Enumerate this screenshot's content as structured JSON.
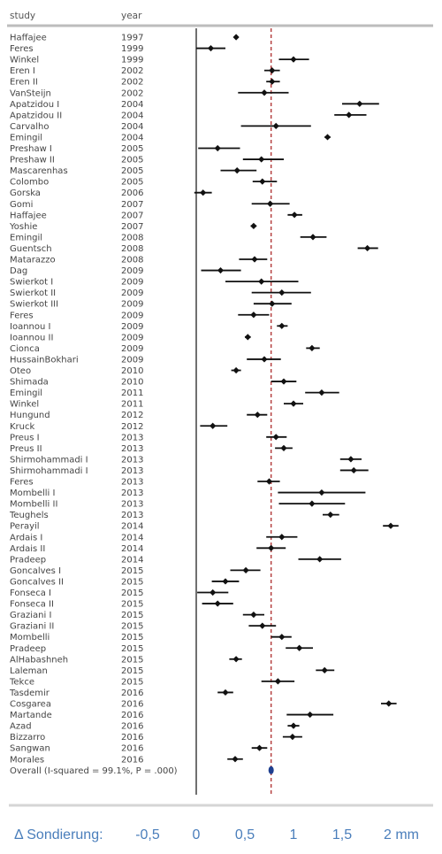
{
  "chart_data": {
    "type": "forest",
    "headers": {
      "study": "study",
      "year": "year"
    },
    "xlabel": "Δ Sondierung:",
    "x_ticks": [
      "-0,5",
      "0",
      "0,5",
      "1",
      "1,5",
      "2 mm"
    ],
    "x_tick_values": [
      -0.5,
      0,
      0.5,
      1,
      1.5,
      2
    ],
    "xlim": [
      -0.95,
      2.2
    ],
    "reference_line": 0,
    "pooled_line": 0.77,
    "colors": {
      "xaxis_text": "#4a7ebb",
      "pooled_line": "#b33a3a",
      "overall_marker": "#1f3f8f",
      "axis_bar": "#d5d5d5"
    },
    "studies": [
      {
        "study": "Haffajee",
        "year": "1997",
        "est": 0.41,
        "lo": 0.39,
        "hi": 0.43
      },
      {
        "study": "Feres",
        "year": "1999",
        "est": 0.15,
        "lo": 0.0,
        "hi": 0.3
      },
      {
        "study": "Winkel",
        "year": "1999",
        "est": 1.0,
        "lo": 0.85,
        "hi": 1.16
      },
      {
        "study": "Eren I",
        "year": "2002",
        "est": 0.78,
        "lo": 0.7,
        "hi": 0.86
      },
      {
        "study": "Eren II",
        "year": "2002",
        "est": 0.78,
        "lo": 0.72,
        "hi": 0.86
      },
      {
        "study": "VanSteijn",
        "year": "2002",
        "est": 0.7,
        "lo": 0.43,
        "hi": 0.95
      },
      {
        "study": "Apatzidou I",
        "year": "2004",
        "est": 1.68,
        "lo": 1.5,
        "hi": 1.88
      },
      {
        "study": "Apatzidou II",
        "year": "2004",
        "est": 1.57,
        "lo": 1.42,
        "hi": 1.75
      },
      {
        "study": "Carvalho",
        "year": "2004",
        "est": 0.82,
        "lo": 0.46,
        "hi": 1.18
      },
      {
        "study": "Emingil",
        "year": "2004",
        "est": 1.35,
        "lo": 1.32,
        "hi": 1.38
      },
      {
        "study": "Preshaw I",
        "year": "2005",
        "est": 0.22,
        "lo": 0.02,
        "hi": 0.45
      },
      {
        "study": "Preshaw II",
        "year": "2005",
        "est": 0.67,
        "lo": 0.48,
        "hi": 0.9
      },
      {
        "study": "Mascarenhas",
        "year": "2005",
        "est": 0.42,
        "lo": 0.25,
        "hi": 0.62
      },
      {
        "study": "Colombo",
        "year": "2005",
        "est": 0.68,
        "lo": 0.58,
        "hi": 0.83
      },
      {
        "study": "Gorska",
        "year": "2006",
        "est": 0.07,
        "lo": -0.02,
        "hi": 0.16
      },
      {
        "study": "Gomi",
        "year": "2007",
        "est": 0.76,
        "lo": 0.57,
        "hi": 0.96
      },
      {
        "study": "Haffajee",
        "year": "2007",
        "est": 1.01,
        "lo": 0.94,
        "hi": 1.09
      },
      {
        "study": "Yoshie",
        "year": "2007",
        "est": 0.59,
        "lo": 0.56,
        "hi": 0.62
      },
      {
        "study": "Emingil",
        "year": "2008",
        "est": 1.2,
        "lo": 1.07,
        "hi": 1.34
      },
      {
        "study": "Guentsch",
        "year": "2008",
        "est": 1.76,
        "lo": 1.66,
        "hi": 1.87
      },
      {
        "study": "Matarazzo",
        "year": "2008",
        "est": 0.6,
        "lo": 0.44,
        "hi": 0.73
      },
      {
        "study": "Dag",
        "year": "2009",
        "est": 0.25,
        "lo": 0.05,
        "hi": 0.46
      },
      {
        "study": "Swierkot I",
        "year": "2009",
        "est": 0.67,
        "lo": 0.3,
        "hi": 1.05
      },
      {
        "study": "Swierkot II",
        "year": "2009",
        "est": 0.88,
        "lo": 0.57,
        "hi": 1.18
      },
      {
        "study": "Swierkot III",
        "year": "2009",
        "est": 0.78,
        "lo": 0.59,
        "hi": 0.98
      },
      {
        "study": "Feres",
        "year": "2009",
        "est": 0.59,
        "lo": 0.43,
        "hi": 0.75
      },
      {
        "study": "Ioannou I",
        "year": "2009",
        "est": 0.88,
        "lo": 0.83,
        "hi": 0.94
      },
      {
        "study": "Ioannou II",
        "year": "2009",
        "est": 0.53,
        "lo": 0.5,
        "hi": 0.56
      },
      {
        "study": "Cionca",
        "year": "2009",
        "est": 1.19,
        "lo": 1.13,
        "hi": 1.27
      },
      {
        "study": "HussainBokhari",
        "year": "2009",
        "est": 0.7,
        "lo": 0.52,
        "hi": 0.87
      },
      {
        "study": "Oteo",
        "year": "2010",
        "est": 0.41,
        "lo": 0.36,
        "hi": 0.46
      },
      {
        "study": "Shimada",
        "year": "2010",
        "est": 0.9,
        "lo": 0.77,
        "hi": 1.03
      },
      {
        "study": "Emingil",
        "year": "2011",
        "est": 1.29,
        "lo": 1.12,
        "hi": 1.47
      },
      {
        "study": "Winkel",
        "year": "2011",
        "est": 1.0,
        "lo": 0.9,
        "hi": 1.1
      },
      {
        "study": "Hungund",
        "year": "2012",
        "est": 0.63,
        "lo": 0.52,
        "hi": 0.73
      },
      {
        "study": "Kruck",
        "year": "2012",
        "est": 0.17,
        "lo": 0.04,
        "hi": 0.32
      },
      {
        "study": "Preus I",
        "year": "2013",
        "est": 0.82,
        "lo": 0.72,
        "hi": 0.93
      },
      {
        "study": "Preus II",
        "year": "2013",
        "est": 0.9,
        "lo": 0.81,
        "hi": 0.99
      },
      {
        "study": "Shirmohammadi I",
        "year": "2013",
        "est": 1.59,
        "lo": 1.48,
        "hi": 1.7
      },
      {
        "study": "Shirmohammadi I",
        "year": "2013",
        "est": 1.62,
        "lo": 1.48,
        "hi": 1.77
      },
      {
        "study": "Feres",
        "year": "2013",
        "est": 0.75,
        "lo": 0.63,
        "hi": 0.86
      },
      {
        "study": "Mombelli I",
        "year": "2013",
        "est": 1.29,
        "lo": 0.84,
        "hi": 1.74
      },
      {
        "study": "Mombelli II",
        "year": "2013",
        "est": 1.19,
        "lo": 0.85,
        "hi": 1.53
      },
      {
        "study": "Teughels",
        "year": "2013",
        "est": 1.38,
        "lo": 1.3,
        "hi": 1.47
      },
      {
        "study": "Perayil",
        "year": "2014",
        "est": 2.0,
        "lo": 1.92,
        "hi": 2.08
      },
      {
        "study": "Ardais I",
        "year": "2014",
        "est": 0.88,
        "lo": 0.72,
        "hi": 1.04
      },
      {
        "study": "Ardais II",
        "year": "2014",
        "est": 0.77,
        "lo": 0.62,
        "hi": 0.92
      },
      {
        "study": "Pradeep",
        "year": "2014",
        "est": 1.27,
        "lo": 1.05,
        "hi": 1.49
      },
      {
        "study": "Goncalves I",
        "year": "2015",
        "est": 0.51,
        "lo": 0.35,
        "hi": 0.66
      },
      {
        "study": "Goncalves II",
        "year": "2015",
        "est": 0.3,
        "lo": 0.16,
        "hi": 0.44
      },
      {
        "study": "Fonseca I",
        "year": "2015",
        "est": 0.17,
        "lo": 0.01,
        "hi": 0.33
      },
      {
        "study": "Fonseca II",
        "year": "2015",
        "est": 0.22,
        "lo": 0.06,
        "hi": 0.38
      },
      {
        "study": "Graziani I",
        "year": "2015",
        "est": 0.59,
        "lo": 0.48,
        "hi": 0.7
      },
      {
        "study": "Graziani II",
        "year": "2015",
        "est": 0.68,
        "lo": 0.54,
        "hi": 0.82
      },
      {
        "study": "Mombelli",
        "year": "2015",
        "est": 0.88,
        "lo": 0.77,
        "hi": 0.98
      },
      {
        "study": "Pradeep",
        "year": "2015",
        "est": 1.06,
        "lo": 0.92,
        "hi": 1.2
      },
      {
        "study": "AlHabashneh",
        "year": "2015",
        "est": 0.41,
        "lo": 0.34,
        "hi": 0.47
      },
      {
        "study": "Laleman",
        "year": "2015",
        "est": 1.32,
        "lo": 1.23,
        "hi": 1.42
      },
      {
        "study": "Tekce",
        "year": "2015",
        "est": 0.84,
        "lo": 0.67,
        "hi": 1.01
      },
      {
        "study": "Tasdemir",
        "year": "2016",
        "est": 0.3,
        "lo": 0.22,
        "hi": 0.38
      },
      {
        "study": "Cosgarea",
        "year": "2016",
        "est": 1.98,
        "lo": 1.9,
        "hi": 2.06
      },
      {
        "study": "Martande",
        "year": "2016",
        "est": 1.17,
        "lo": 0.93,
        "hi": 1.41
      },
      {
        "study": "Azad",
        "year": "2016",
        "est": 1.0,
        "lo": 0.94,
        "hi": 1.06
      },
      {
        "study": "Bizzarro",
        "year": "2016",
        "est": 0.99,
        "lo": 0.89,
        "hi": 1.09
      },
      {
        "study": "Sangwan",
        "year": "2016",
        "est": 0.65,
        "lo": 0.57,
        "hi": 0.73
      },
      {
        "study": "Morales",
        "year": "2016",
        "est": 0.4,
        "lo": 0.32,
        "hi": 0.48
      }
    ],
    "overall": {
      "label": "Overall  (I-squared = 99.1%, P = .000)",
      "est": 0.77
    }
  }
}
